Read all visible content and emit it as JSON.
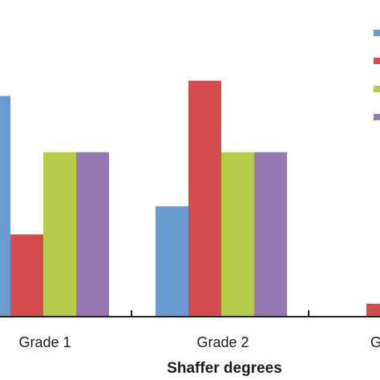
{
  "chart_data": {
    "type": "bar",
    "xlabel": "Shaffer degrees",
    "ylabel": "",
    "categories": [
      "Grade 1",
      "Grade 2",
      "G"
    ],
    "ylim": [
      0,
      14
    ],
    "grid": false,
    "legend": {
      "placement": "top-right",
      "entries_visible_text": false
    },
    "series": [
      {
        "color": "#6a9bd0",
        "values": [
          10.2,
          5.1,
          0
        ]
      },
      {
        "color": "#d44c4d",
        "values": [
          3.8,
          10.9,
          0.6
        ]
      },
      {
        "color": "#b6cd4b",
        "values": [
          7.6,
          7.6,
          0
        ]
      },
      {
        "color": "#9679b3",
        "values": [
          7.6,
          7.6,
          0
        ]
      }
    ]
  }
}
